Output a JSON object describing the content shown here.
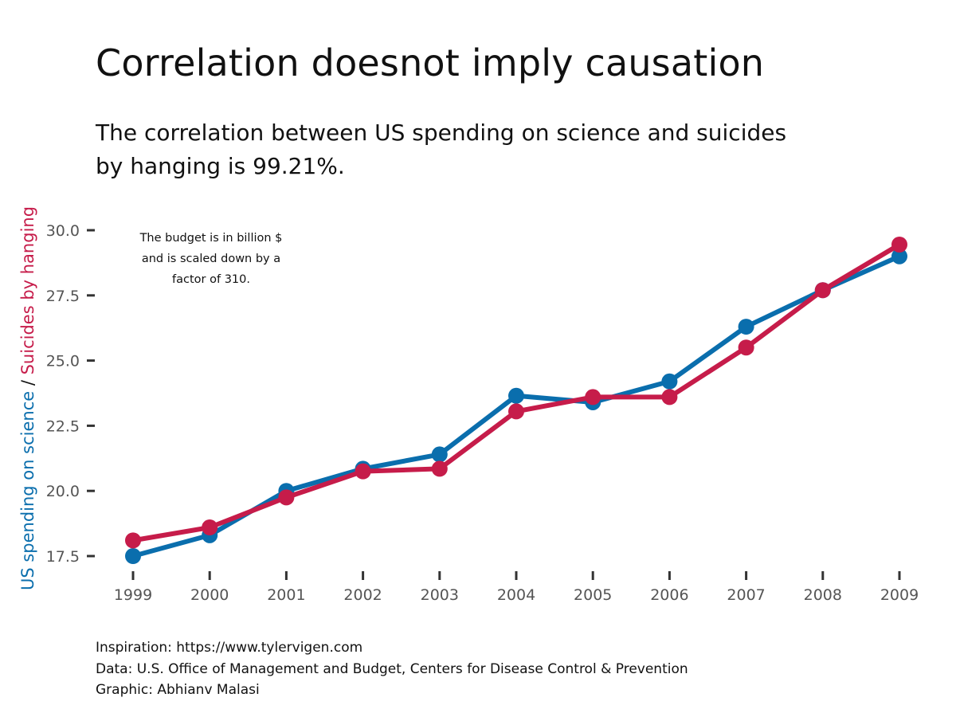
{
  "title": "Correlation doesnot imply causation",
  "subtitle": "The correlation between US spending on science and suicides by hanging is 99.21%.",
  "annotation": [
    "The budget is in billion $",
    "and is scaled down by a",
    "factor of 310."
  ],
  "footer": {
    "inspiration": "Inspiration: https://www.tylervigen.com",
    "data_source": "Data: U.S. Office of Management and Budget, Centers for Disease Control & Prevention",
    "graphic": "Graphic: Abhianv Malasi"
  },
  "chart_data": {
    "type": "line",
    "x": [
      1999,
      2000,
      2001,
      2002,
      2003,
      2004,
      2005,
      2006,
      2007,
      2008,
      2009
    ],
    "series": [
      {
        "name": "US spending on science",
        "color": "#0a6ead",
        "values": [
          17.5,
          18.3,
          20.0,
          20.85,
          21.4,
          23.65,
          23.4,
          24.2,
          26.3,
          27.7,
          29.0
        ]
      },
      {
        "name": "Suicides by hanging",
        "color": "#c61c4a",
        "values": [
          18.1,
          18.6,
          19.75,
          20.75,
          20.85,
          23.05,
          23.6,
          23.6,
          25.5,
          27.7,
          29.45
        ]
      }
    ],
    "ylabel_parts": [
      {
        "text": "US spending on science",
        "color": "#0a6ead"
      },
      {
        "text": " / ",
        "color": "#111111"
      },
      {
        "text": "Suicides by hanging",
        "color": "#c61c4a"
      }
    ],
    "yticks": [
      17.5,
      20.0,
      22.5,
      25.0,
      27.5,
      30.0
    ],
    "ytick_labels": [
      "17.5",
      "20.0",
      "22.5",
      "25.0",
      "27.5",
      "30.0"
    ],
    "xtick_labels": [
      "1999",
      "2000",
      "2001",
      "2002",
      "2003",
      "2004",
      "2005",
      "2006",
      "2007",
      "2008",
      "2009"
    ],
    "ylim": [
      17.5,
      30.0
    ],
    "xlim": [
      1999,
      2009
    ],
    "grid": false,
    "legend": "none"
  }
}
